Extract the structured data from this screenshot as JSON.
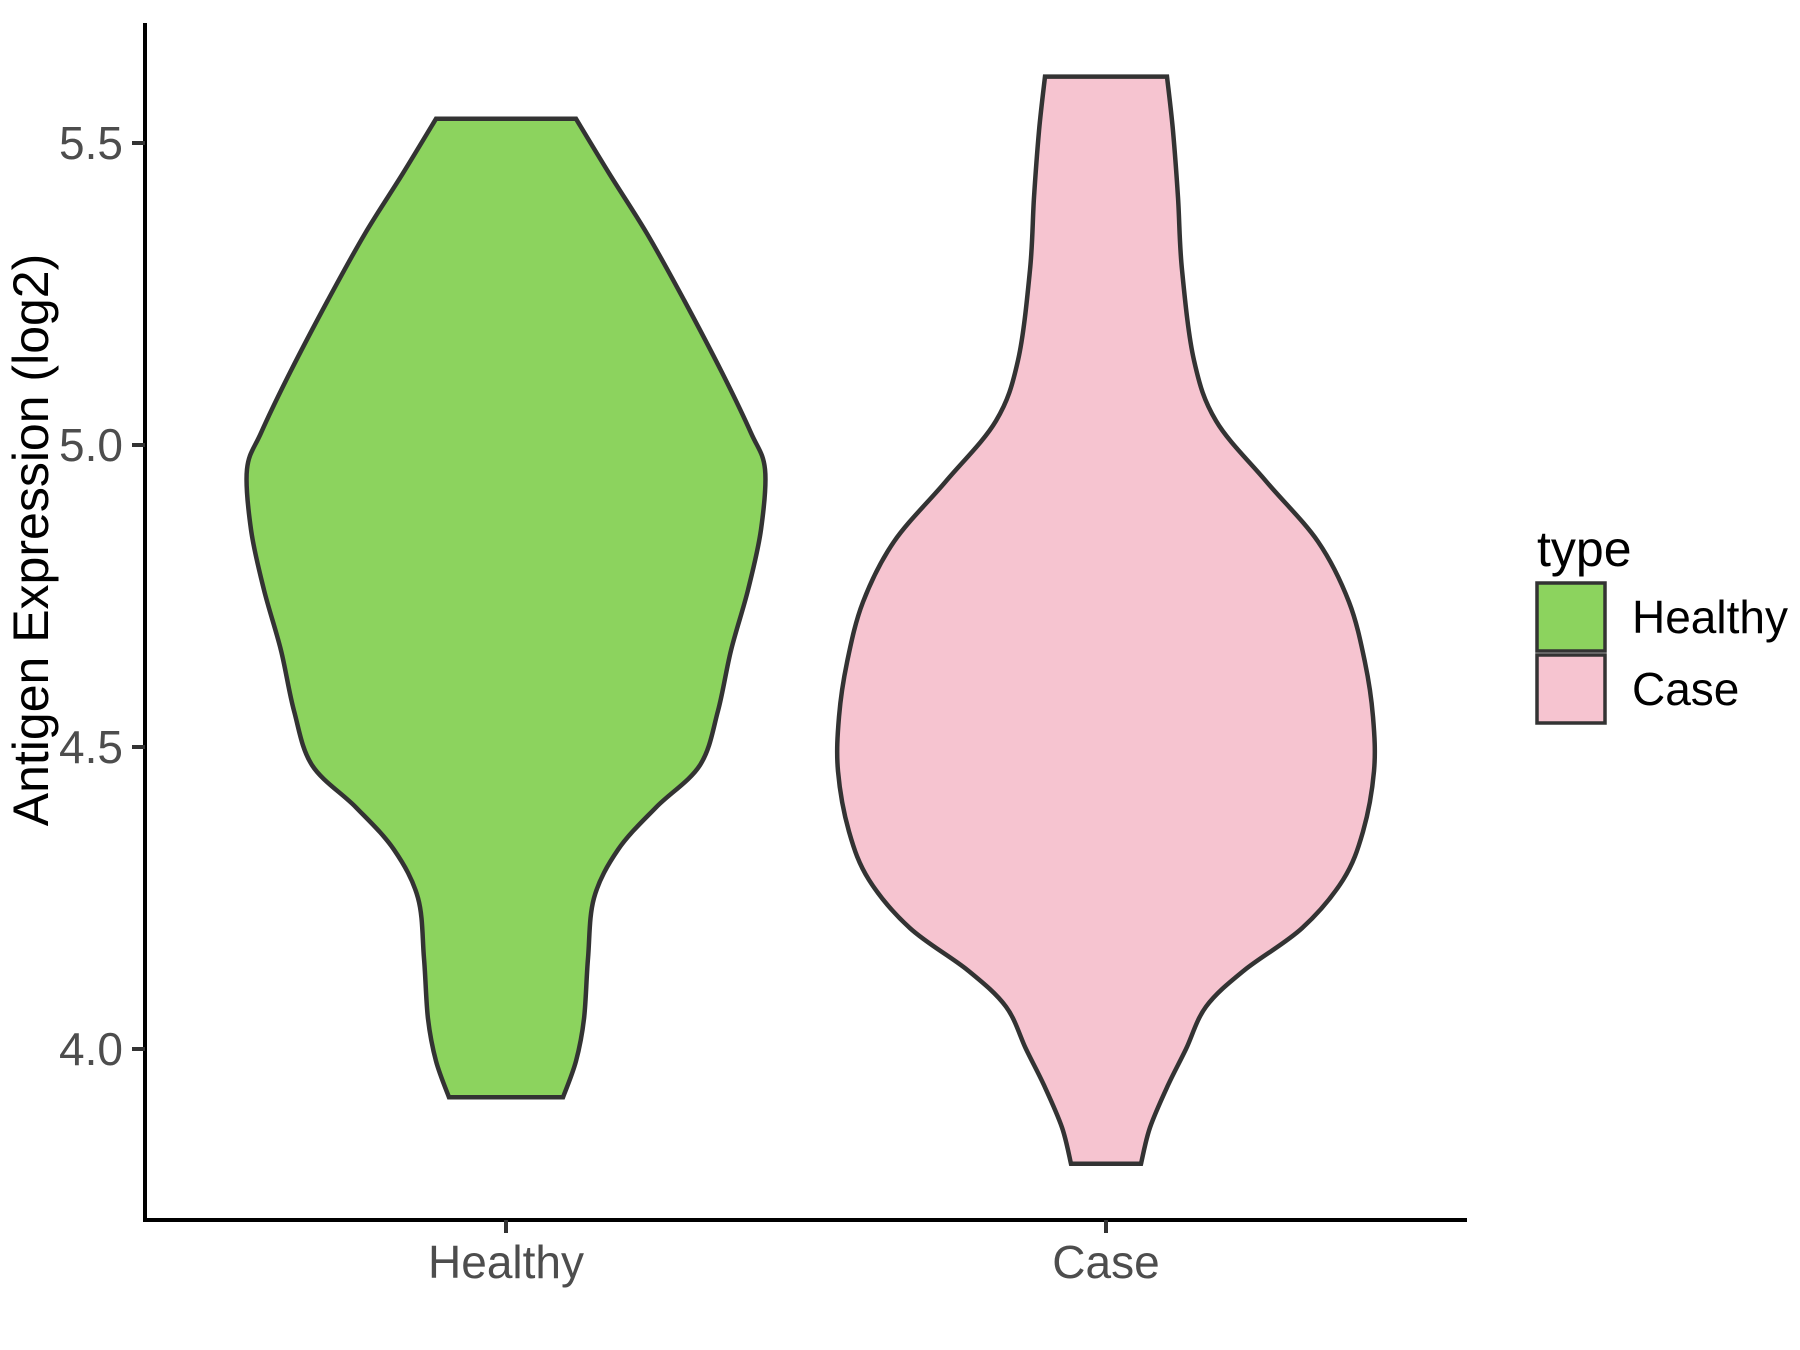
{
  "page": {
    "background": "#FFFFFF"
  },
  "chart_data": {
    "type": "violin",
    "title": "",
    "subtitle": "",
    "xlabel": "",
    "ylabel": "Antigen Expression (log2)",
    "categories": [
      "Healthy",
      "Case"
    ],
    "y_axis": {
      "ticks": [
        {
          "value": 4.0,
          "label": "4.0"
        },
        {
          "value": 4.5,
          "label": "4.5"
        },
        {
          "value": 5.0,
          "label": "5.0"
        },
        {
          "value": 5.5,
          "label": "5.5"
        }
      ],
      "range_values": [
        3.72,
        5.7
      ],
      "grid": "off"
    },
    "x_axis": {
      "tick_labels": [
        "Healthy",
        "Case"
      ]
    },
    "legend": {
      "title": "type",
      "position": "right",
      "entries": [
        {
          "label": "Healthy",
          "color": "#8CD35E"
        },
        {
          "label": "Case",
          "color": "#F6C4D0"
        }
      ]
    },
    "style": {
      "violin_stroke": "#333333",
      "axis_line_color": "#000000",
      "tick_mark_color": "#333333",
      "tick_label_color": "#4D4D4D",
      "axis_title_color": "#000000",
      "legend_text_color": "#000000"
    },
    "violins": [
      {
        "category": "Healthy",
        "fill": "#8CD35E",
        "value_min": 3.92,
        "value_max": 5.54,
        "profile_value_halfwidth": [
          [
            5.54,
            70
          ],
          [
            5.45,
            103
          ],
          [
            5.35,
            141
          ],
          [
            5.24,
            178
          ],
          [
            5.12,
            216
          ],
          [
            5.02,
            245
          ],
          [
            4.96,
            259
          ],
          [
            4.86,
            255
          ],
          [
            4.76,
            242
          ],
          [
            4.66,
            225
          ],
          [
            4.56,
            212
          ],
          [
            4.47,
            194
          ],
          [
            4.4,
            150
          ],
          [
            4.33,
            112
          ],
          [
            4.25,
            88
          ],
          [
            4.15,
            82
          ],
          [
            4.05,
            78
          ],
          [
            3.98,
            70
          ],
          [
            3.92,
            57
          ]
        ]
      },
      {
        "category": "Case",
        "fill": "#F6C4D0",
        "value_min": 3.81,
        "value_max": 5.61,
        "profile_value_halfwidth": [
          [
            5.61,
            61
          ],
          [
            5.52,
            67
          ],
          [
            5.41,
            72
          ],
          [
            5.29,
            76
          ],
          [
            5.14,
            88
          ],
          [
            5.04,
            110
          ],
          [
            4.94,
            160
          ],
          [
            4.84,
            212
          ],
          [
            4.74,
            243
          ],
          [
            4.64,
            259
          ],
          [
            4.55,
            267
          ],
          [
            4.46,
            268
          ],
          [
            4.36,
            257
          ],
          [
            4.28,
            237
          ],
          [
            4.2,
            196
          ],
          [
            4.13,
            138
          ],
          [
            4.07,
            100
          ],
          [
            4.0,
            80
          ],
          [
            3.94,
            62
          ],
          [
            3.87,
            44
          ],
          [
            3.81,
            35
          ]
        ]
      }
    ]
  }
}
